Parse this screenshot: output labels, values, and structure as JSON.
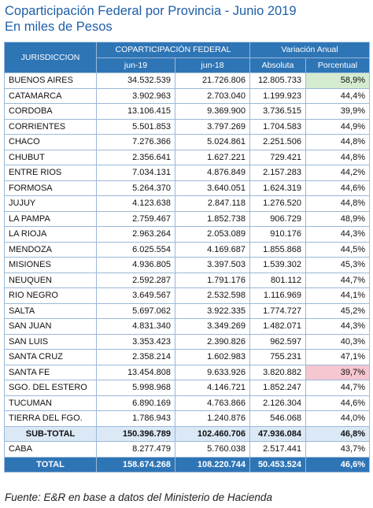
{
  "title": [
    "Coparticipación Federal por Provincia - Junio 2019",
    "En miles de Pesos"
  ],
  "table": {
    "header": {
      "jurisdiccion": "JURISDICCION",
      "group1": "COPARTICIPACIÓN FEDERAL",
      "group2": "Variación Anual",
      "columns": [
        "jun-19",
        "jun-18",
        "Absoluta",
        "Porcentual"
      ]
    },
    "rows": [
      [
        "BUENOS AIRES",
        "34.532.539",
        "21.726.806",
        "12.805.733",
        "58,9%"
      ],
      [
        "CATAMARCA",
        "3.902.963",
        "2.703.040",
        "1.199.923",
        "44,4%"
      ],
      [
        "CORDOBA",
        "13.106.415",
        "9.369.900",
        "3.736.515",
        "39,9%"
      ],
      [
        "CORRIENTES",
        "5.501.853",
        "3.797.269",
        "1.704.583",
        "44,9%"
      ],
      [
        "CHACO",
        "7.276.366",
        "5.024.861",
        "2.251.506",
        "44,8%"
      ],
      [
        "CHUBUT",
        "2.356.641",
        "1.627.221",
        "729.421",
        "44,8%"
      ],
      [
        "ENTRE RIOS",
        "7.034.131",
        "4.876.849",
        "2.157.283",
        "44,2%"
      ],
      [
        "FORMOSA",
        "5.264.370",
        "3.640.051",
        "1.624.319",
        "44,6%"
      ],
      [
        "JUJUY",
        "4.123.638",
        "2.847.118",
        "1.276.520",
        "44,8%"
      ],
      [
        "LA PAMPA",
        "2.759.467",
        "1.852.738",
        "906.729",
        "48,9%"
      ],
      [
        "LA RIOJA",
        "2.963.264",
        "2.053.089",
        "910.176",
        "44,3%"
      ],
      [
        "MENDOZA",
        "6.025.554",
        "4.169.687",
        "1.855.868",
        "44,5%"
      ],
      [
        "MISIONES",
        "4.936.805",
        "3.397.503",
        "1.539.302",
        "45,3%"
      ],
      [
        "NEUQUEN",
        "2.592.287",
        "1.791.176",
        "801.112",
        "44,7%"
      ],
      [
        "RIO NEGRO",
        "3.649.567",
        "2.532.598",
        "1.116.969",
        "44,1%"
      ],
      [
        "SALTA",
        "5.697.062",
        "3.922.335",
        "1.774.727",
        "45,2%"
      ],
      [
        "SAN JUAN",
        "4.831.340",
        "3.349.269",
        "1.482.071",
        "44,3%"
      ],
      [
        "SAN LUIS",
        "3.353.423",
        "2.390.826",
        "962.597",
        "40,3%"
      ],
      [
        "SANTA CRUZ",
        "2.358.214",
        "1.602.983",
        "755.231",
        "47,1%"
      ],
      [
        "SANTA FE",
        "13.454.808",
        "9.633.926",
        "3.820.882",
        "39,7%"
      ],
      [
        "SGO. DEL ESTERO",
        "5.998.968",
        "4.146.721",
        "1.852.247",
        "44,7%"
      ],
      [
        "TUCUMAN",
        "6.890.169",
        "4.763.866",
        "2.126.304",
        "44,6%"
      ],
      [
        "TIERRA DEL FGO.",
        "1.786.943",
        "1.240.876",
        "546.068",
        "44,0%"
      ]
    ],
    "subtotal": [
      "SUB-TOTAL",
      "150.396.789",
      "102.460.706",
      "47.936.084",
      "46,8%"
    ],
    "caba": [
      "CABA",
      "8.277.479",
      "5.760.038",
      "2.517.441",
      "43,7%"
    ],
    "total": [
      "TOTAL",
      "158.674.268",
      "108.220.744",
      "50.453.524",
      "46,6%"
    ],
    "highlights": [
      {
        "row": 0,
        "column": 4,
        "color": "#d4ebcf"
      },
      {
        "row": 19,
        "column": 4,
        "color": "#f6c6d1"
      }
    ]
  },
  "source": "Fuente: E&R en base a  datos del Ministerio de Hacienda"
}
